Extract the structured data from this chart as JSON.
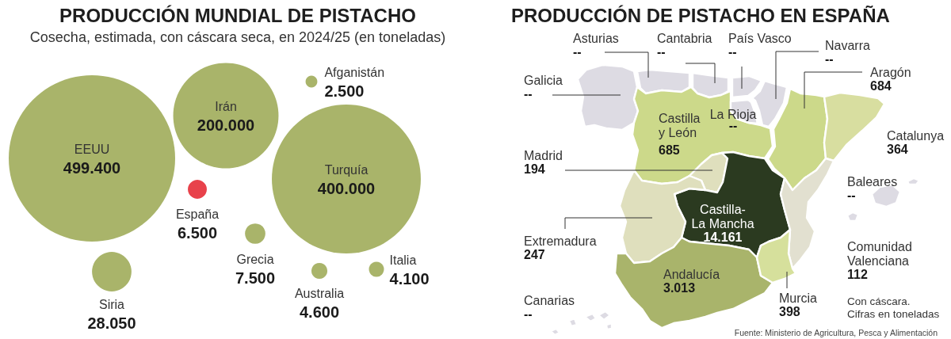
{
  "chart_data": [
    {
      "type": "other",
      "title": "PRODUCCIÓN MUNDIAL DE PISTACHO",
      "subtitle": "Cosecha, estimada, con cáscara seca, en 2024/25 (en toneladas)",
      "categories": [
        "EEUU",
        "Irán",
        "Afganistán",
        "Turquía",
        "España",
        "Grecia",
        "Siria",
        "Australia",
        "Italia"
      ],
      "values": [
        499400,
        200000,
        2500,
        400000,
        6500,
        7500,
        28050,
        4600,
        4100
      ],
      "value_labels": [
        "499.400",
        "200.000",
        "2.500",
        "400.000",
        "6.500",
        "7.500",
        "28.050",
        "4.600",
        "4.100"
      ],
      "colors": [
        "#a9b46a",
        "#a9b46a",
        "#a9b46a",
        "#a9b46a",
        "#e8424b",
        "#a9b46a",
        "#a9b46a",
        "#a9b46a",
        "#a9b46a"
      ]
    },
    {
      "type": "other",
      "title": "PRODUCCIÓN DE PISTACHO EN ESPAÑA",
      "categories": [
        "Asturias",
        "Cantabria",
        "País Vasco",
        "Navarra",
        "Aragón",
        "Galicia",
        "Castilla y León",
        "La Rioja",
        "Catalunya",
        "Madrid",
        "Baleares",
        "Castilla-La Mancha",
        "Extremadura",
        "Comunidad Valenciana",
        "Andalucía",
        "Murcia",
        "Canarias"
      ],
      "values": [
        null,
        null,
        null,
        null,
        684,
        null,
        685,
        null,
        364,
        194,
        null,
        14161,
        247,
        112,
        3013,
        398,
        null
      ],
      "value_labels": [
        "--",
        "--",
        "--",
        "--",
        "684",
        "--",
        "685",
        "--",
        "364",
        "194",
        "--",
        "14.161",
        "247",
        "112",
        "3.013",
        "398",
        "--"
      ],
      "colors": [
        "#dddbe3",
        "#dddbe3",
        "#dddbe3",
        "#dddbe3",
        "#ccd98a",
        "#dddbe3",
        "#ccd98a",
        "#dddbe3",
        "#d8dea0",
        "#dfdfbd",
        "#dddbe3",
        "#2b3a20",
        "#dfdfbd",
        "#e2e0d0",
        "#a9b46b",
        "#d6e09c",
        "#dddbe3"
      ],
      "annotations": [
        "Con cáscara. Cifras en toneladas",
        "Fuente: Ministerio de Agricultura, Pesca y Alimentación"
      ]
    }
  ]
}
